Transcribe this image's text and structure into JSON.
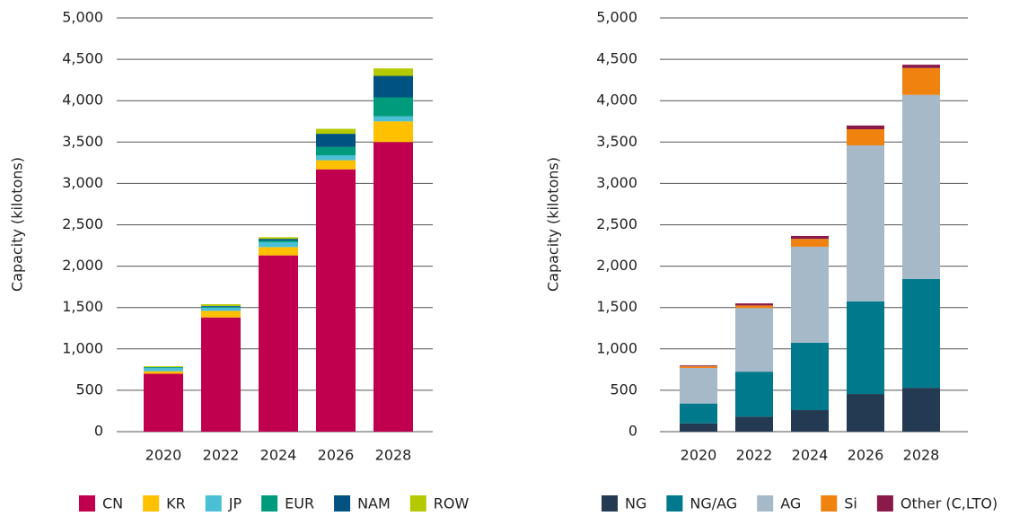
{
  "chart_data": [
    {
      "type": "bar",
      "stacked": true,
      "ylabel": "Capacity (kilotons)",
      "categories": [
        "2020",
        "2022",
        "2024",
        "2026",
        "2028"
      ],
      "ylim": [
        0,
        5000
      ],
      "yticks": [
        0,
        500,
        {
          "value": 1000,
          "label": "1,000"
        },
        {
          "value": 1500,
          "label": "1,500"
        },
        {
          "value": 2000,
          "label": "2,000"
        },
        {
          "value": 2500,
          "label": "2,500"
        },
        {
          "value": 3000,
          "label": "3,000"
        },
        {
          "value": 3500,
          "label": "3,500"
        },
        {
          "value": 4000,
          "label": "4,000"
        },
        {
          "value": 4500,
          "label": "4,500"
        },
        {
          "value": 5000,
          "label": "5,000"
        }
      ],
      "grid": true,
      "series": [
        {
          "name": "CN",
          "color": "#c0004f",
          "values": [
            700,
            1380,
            2130,
            3170,
            3500
          ]
        },
        {
          "name": "KR",
          "color": "#ffc000",
          "values": [
            30,
            80,
            100,
            110,
            250
          ]
        },
        {
          "name": "JP",
          "color": "#4bbfd6",
          "values": [
            40,
            40,
            60,
            60,
            60
          ]
        },
        {
          "name": "EUR",
          "color": "#009b7d",
          "values": [
            10,
            10,
            20,
            100,
            230
          ]
        },
        {
          "name": "NAM",
          "color": "#005380",
          "values": [
            0,
            10,
            20,
            160,
            260
          ]
        },
        {
          "name": "ROW",
          "color": "#b5c900",
          "values": [
            10,
            20,
            20,
            60,
            90
          ]
        }
      ]
    },
    {
      "type": "bar",
      "stacked": true,
      "ylabel": "Capacity (kilotons)",
      "categories": [
        "2020",
        "2022",
        "2024",
        "2026",
        "2028"
      ],
      "ylim": [
        0,
        5000
      ],
      "yticks": [
        0,
        500,
        {
          "value": 1000,
          "label": "1,000"
        },
        {
          "value": 1500,
          "label": "1,500"
        },
        {
          "value": 2000,
          "label": "2,000"
        },
        {
          "value": 2500,
          "label": "2,500"
        },
        {
          "value": 3000,
          "label": "3,000"
        },
        {
          "value": 3500,
          "label": "3,500"
        },
        {
          "value": 4000,
          "label": "4,000"
        },
        {
          "value": 4500,
          "label": "4,500"
        },
        {
          "value": 5000,
          "label": "5,000"
        }
      ],
      "grid": true,
      "series": [
        {
          "name": "NG",
          "color": "#243a52",
          "values": [
            100,
            180,
            260,
            455,
            530
          ]
        },
        {
          "name": "NG/AG",
          "color": "#00798c",
          "values": [
            240,
            545,
            815,
            1120,
            1315
          ]
        },
        {
          "name": "AG",
          "color": "#a5b9c8",
          "values": [
            430,
            770,
            1160,
            1885,
            2225
          ]
        },
        {
          "name": "Si",
          "color": "#f0820f",
          "values": [
            20,
            30,
            95,
            195,
            325
          ]
        },
        {
          "name": "Other (C,LTO)",
          "color": "#8a1a4a",
          "values": [
            10,
            25,
            35,
            45,
            40
          ]
        }
      ]
    }
  ]
}
